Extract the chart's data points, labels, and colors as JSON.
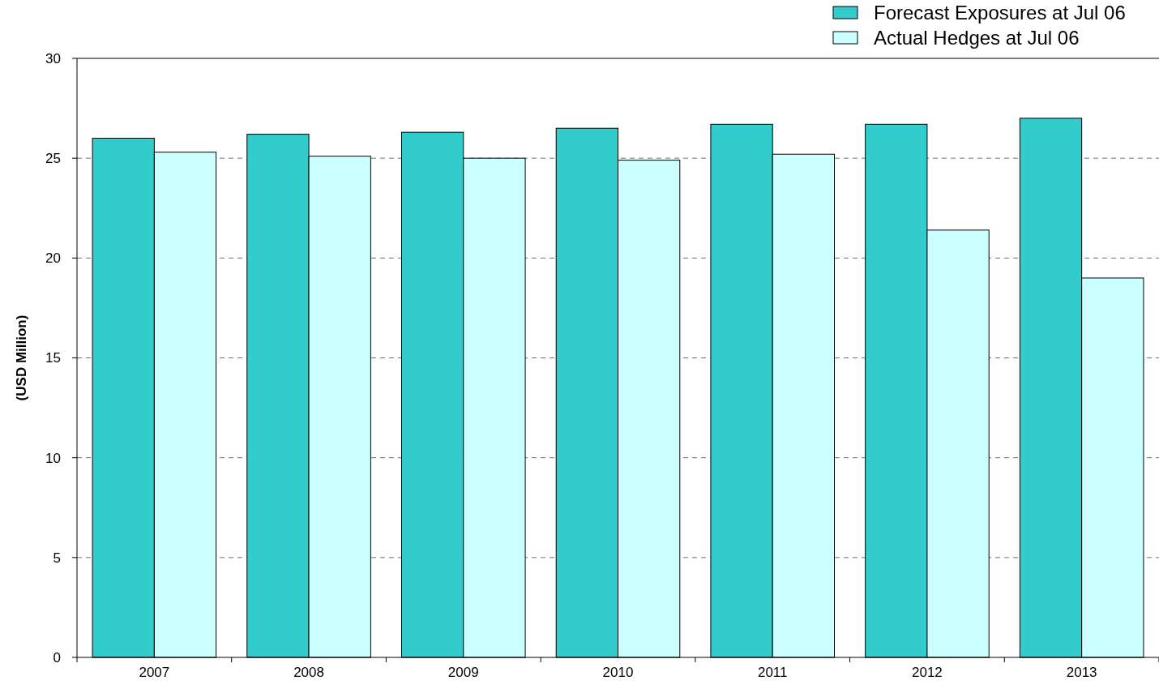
{
  "chart_data": {
    "type": "bar",
    "ylabel": "(USD Million)",
    "categories": [
      "2007",
      "2008",
      "2009",
      "2010",
      "2011",
      "2012",
      "2013"
    ],
    "series": [
      {
        "name": "Forecast Exposures at Jul 06",
        "color": "#33cccc",
        "values": [
          26.0,
          26.2,
          26.3,
          26.5,
          26.7,
          26.7,
          27.0
        ]
      },
      {
        "name": "Actual Hedges at Jul 06",
        "color": "#ccffff",
        "values": [
          25.3,
          25.1,
          25.0,
          24.9,
          25.2,
          21.4,
          19.0
        ]
      }
    ],
    "ylim": [
      0,
      30
    ],
    "yticks": [
      0,
      5,
      10,
      15,
      20,
      25,
      30
    ],
    "grid": "y",
    "legend": "top right"
  }
}
